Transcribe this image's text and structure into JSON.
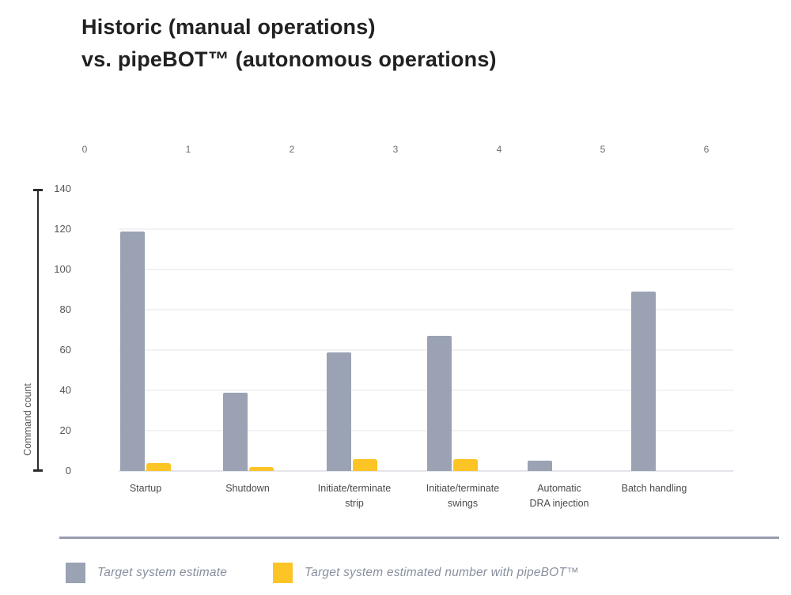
{
  "title": {
    "line1": "Historic (manual operations)",
    "line2": "vs. pipeBOT™ (autonomous operations)"
  },
  "chart_data": {
    "type": "bar",
    "categories": [
      "Startup",
      "Shutdown",
      "Initiate/terminate\nstrip",
      "Initiate/terminate\nswings",
      "Automatic\nDRA injection",
      "Batch handling"
    ],
    "series": [
      {
        "name": "Target system estimate",
        "color": "#9aa2b4",
        "values": [
          119,
          39,
          59,
          67,
          5,
          89
        ]
      },
      {
        "name": "Target system estimated number with pipeBOT™",
        "color": "#fdc426",
        "values": [
          4,
          2,
          6,
          6,
          0,
          0
        ]
      }
    ],
    "title": "Historic (manual operations) vs. pipeBOT™ (autonomous operations)",
    "xlabel": "",
    "ylabel": "Command count",
    "ylim": [
      0,
      140
    ],
    "y_ticks": [
      140,
      120,
      100,
      80,
      60,
      40,
      20,
      0
    ],
    "top_axis_ticks": [
      "0",
      "1",
      "2",
      "3",
      "4",
      "5",
      "6"
    ],
    "grid": "horizontal",
    "legend_position": "bottom"
  },
  "legend": {
    "items": [
      {
        "label": "Target system estimate",
        "color": "#9aa2b4"
      },
      {
        "label": "Target system estimated number with pipeBOT™",
        "color": "#fdc426"
      }
    ]
  }
}
